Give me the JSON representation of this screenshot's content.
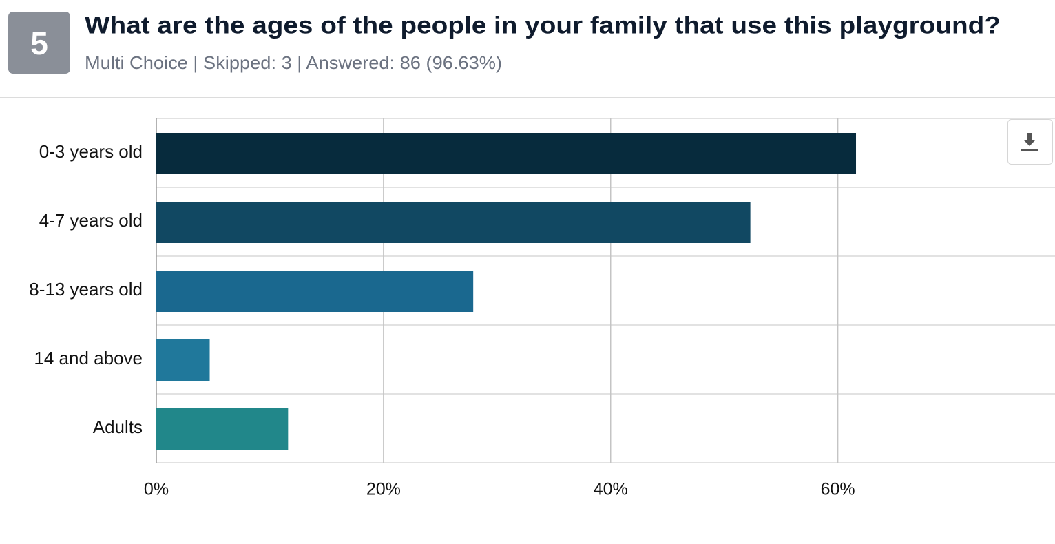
{
  "header": {
    "number": "5",
    "title": "What are the ages of the people in your family that use this playground?",
    "subtitle": "Multi Choice | Skipped: 3 | Answered: 86 (96.63%)"
  },
  "chart_data": {
    "type": "bar",
    "orientation": "horizontal",
    "categories": [
      "0-3 years old",
      "4-7 years old",
      "8-13 years old",
      "14 and above",
      "Adults"
    ],
    "values": [
      61.6,
      52.3,
      27.9,
      4.7,
      11.6
    ],
    "colors": [
      "#072b3d",
      "#114862",
      "#1a688f",
      "#20789b",
      "#21878a"
    ],
    "xlim": [
      0,
      79
    ],
    "xticks": [
      {
        "value": 0,
        "label": "0%"
      },
      {
        "value": 20,
        "label": "20%"
      },
      {
        "value": 40,
        "label": "40%"
      },
      {
        "value": 60,
        "label": "60%"
      }
    ],
    "grid": true
  }
}
